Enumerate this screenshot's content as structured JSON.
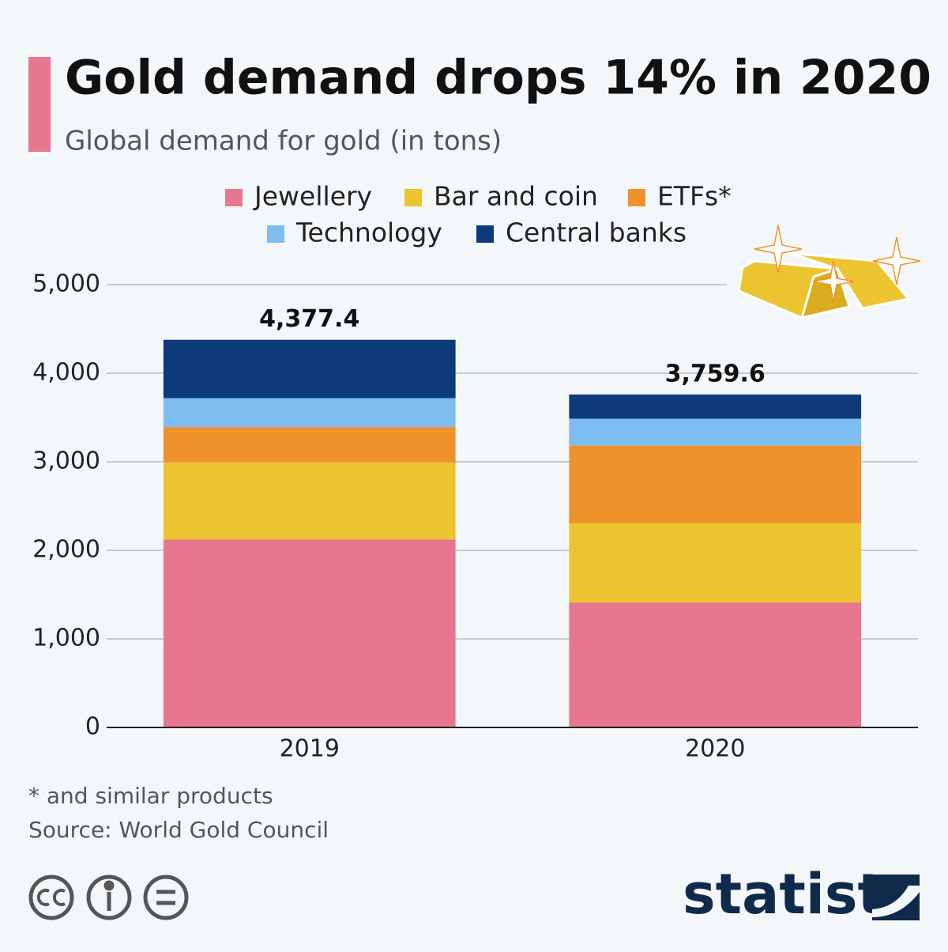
{
  "chart_data": {
    "type": "stacked-bar",
    "title": "Gold demand drops 14% in 2020",
    "subtitle": "Global demand for gold (in tons)",
    "categories": [
      "2019",
      "2020"
    ],
    "series": [
      {
        "name": "Jewellery",
        "color": "#e8768f",
        "values": [
          2122.7,
          1411.6
        ]
      },
      {
        "name": "Bar and coin",
        "color": "#ebc430",
        "values": [
          870.9,
          896.1
        ]
      },
      {
        "name": "ETFs*",
        "color": "#ef922c",
        "values": [
          398.3,
          877.1
        ]
      },
      {
        "name": "Technology",
        "color": "#7dbdf0",
        "values": [
          326.6,
          301.9
        ]
      },
      {
        "name": "Central banks",
        "color": "#0c3a7a",
        "values": [
          658.9,
          272.9
        ]
      }
    ],
    "totals": [
      4377.4,
      3759.6
    ],
    "total_labels": [
      "4,377.4",
      "3,759.6"
    ],
    "ylim": [
      0,
      5000
    ],
    "yticks": [
      0,
      {
        "value": 1000,
        "label": "1,000"
      },
      {
        "value": 2000,
        "label": "2,000"
      },
      {
        "value": 3000,
        "label": "3,000"
      },
      {
        "value": 4000,
        "label": "4,000"
      },
      {
        "value": 5000,
        "label": "5,000"
      }
    ],
    "grid": true,
    "footnote": "* and similar products",
    "source": "Source: World Gold Council",
    "brand": "statista"
  }
}
